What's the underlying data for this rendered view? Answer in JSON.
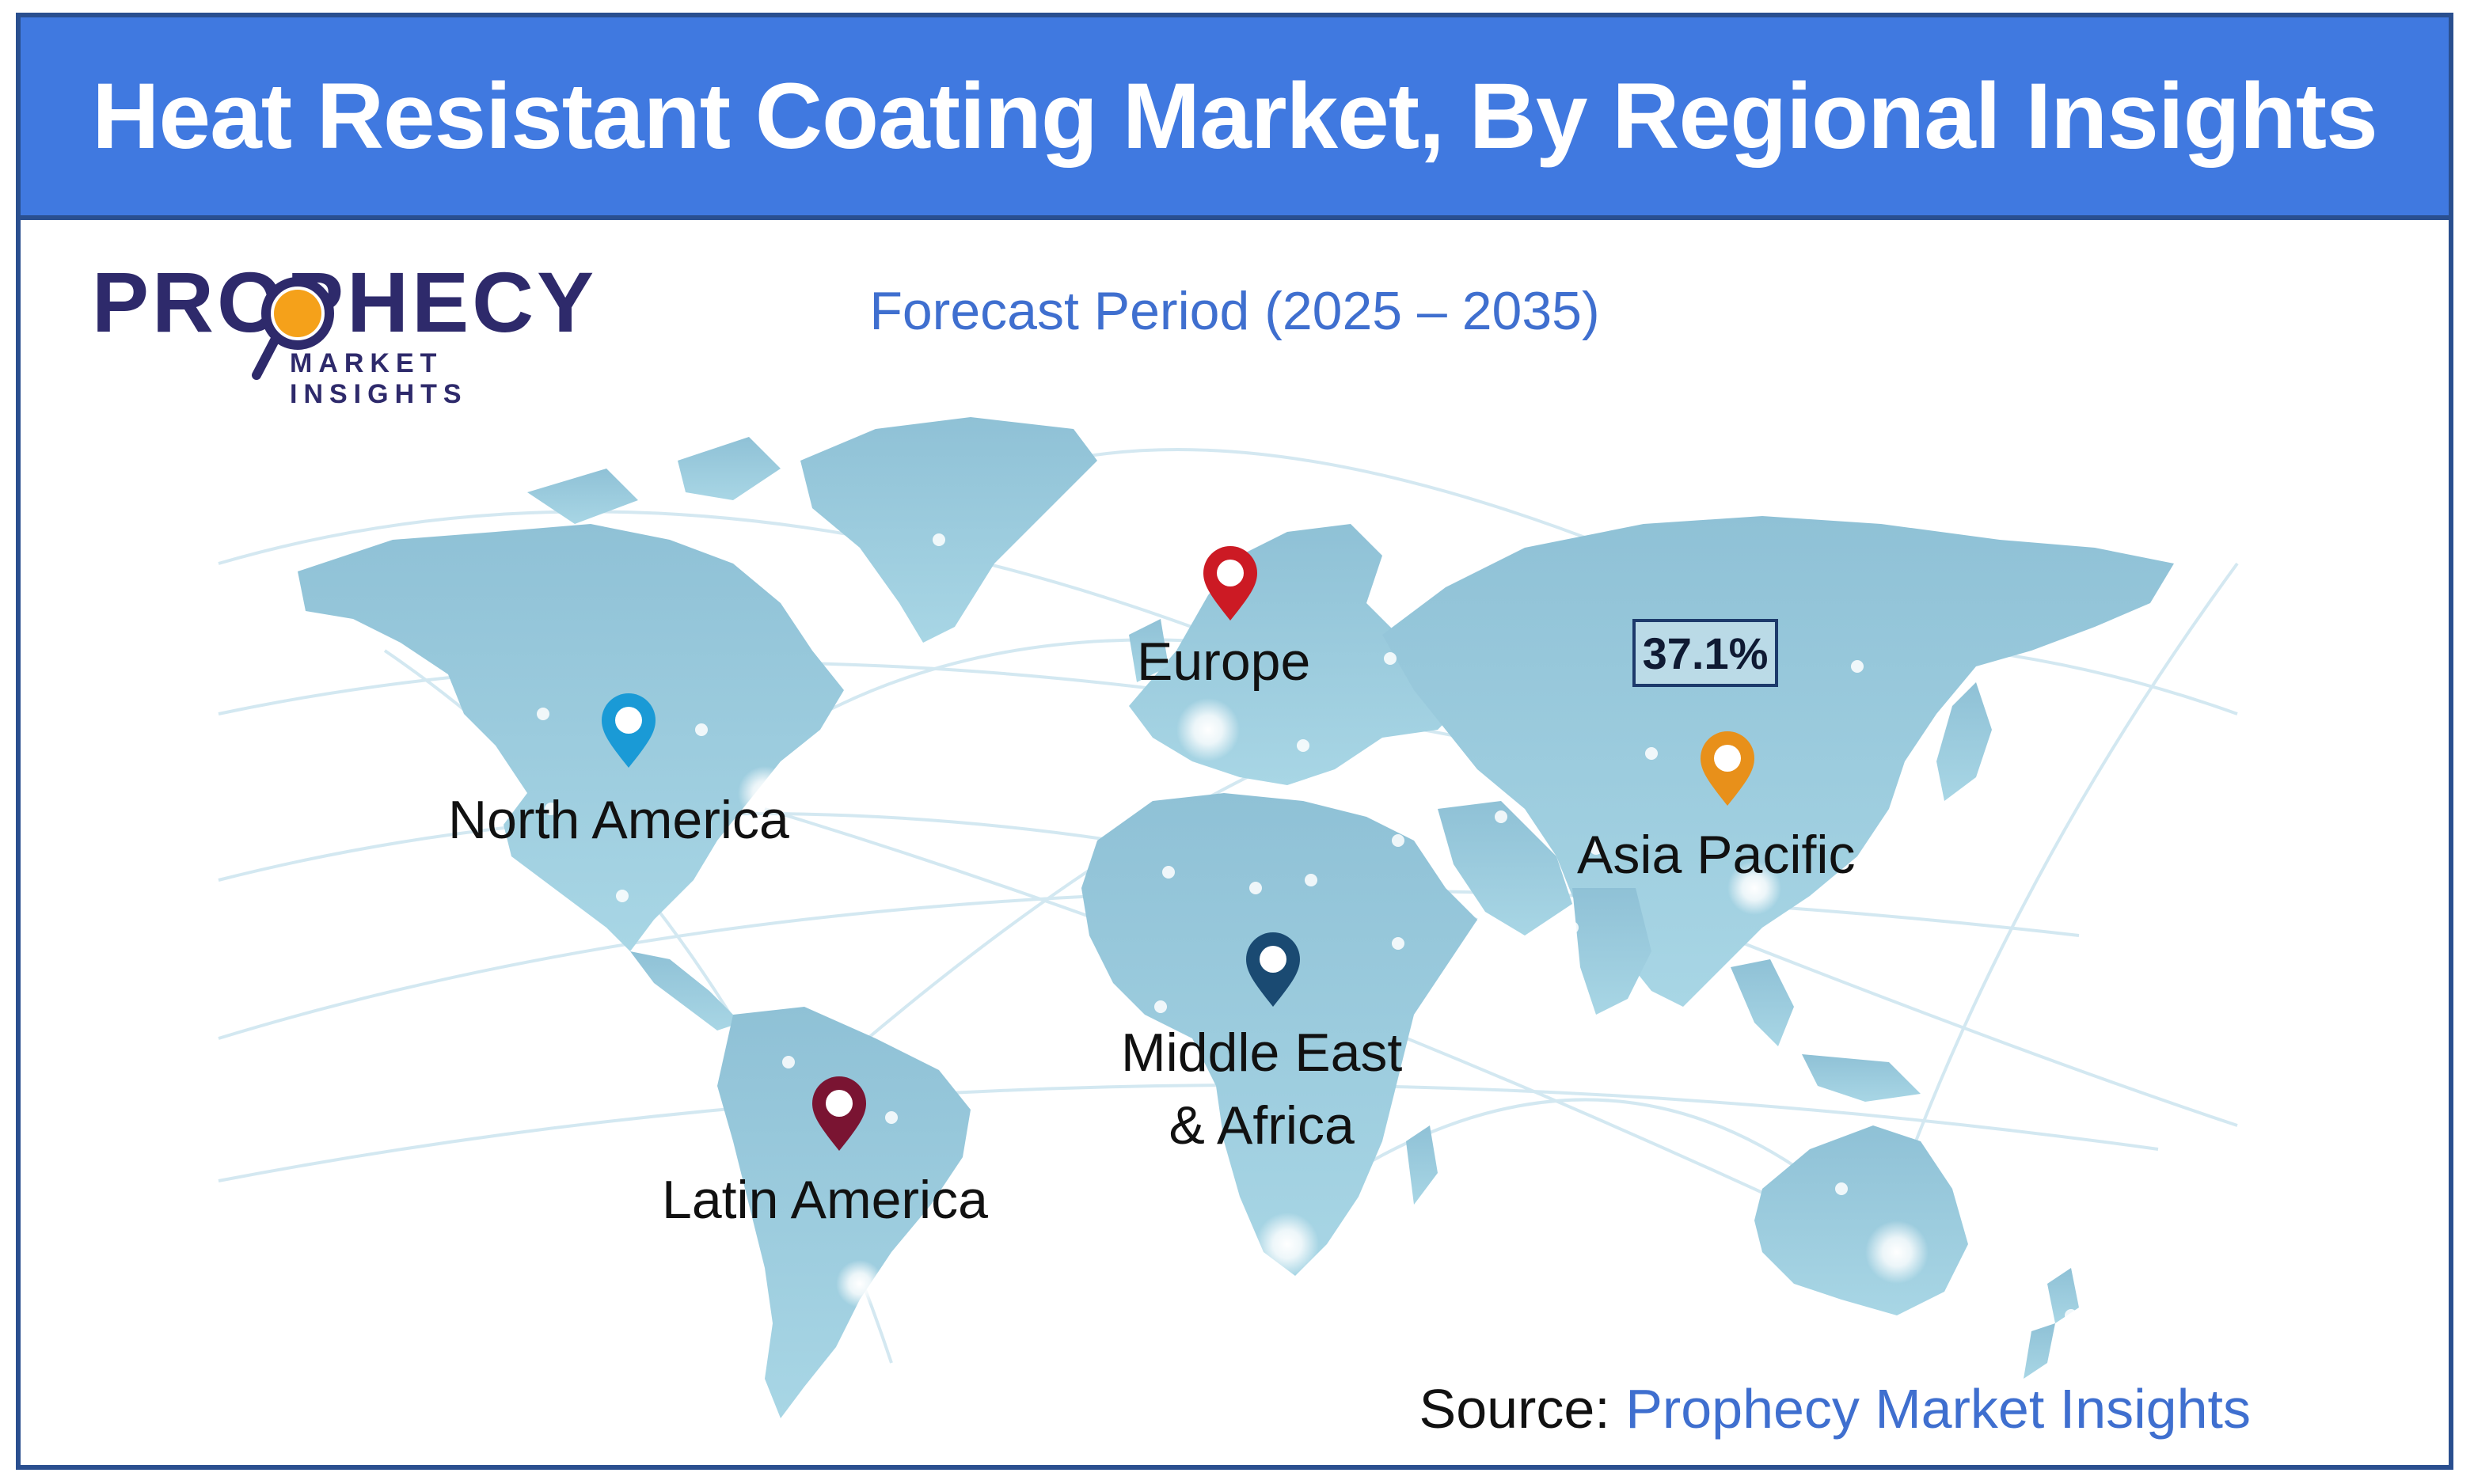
{
  "header": {
    "title": "Heat Resistant Coating Market, By Regional Insights"
  },
  "logo": {
    "name": "PROPHECY",
    "tagline": "MARKET INSIGHTS"
  },
  "subtitle": "Forecast Period (2025 – 2035)",
  "regions": [
    {
      "name": "North America",
      "pin_color": "#1a9ad6"
    },
    {
      "name": "Europe",
      "pin_color": "#cc1a24"
    },
    {
      "name": "Asia Pacific",
      "pin_color": "#e8901a"
    },
    {
      "name": "Latin America",
      "pin_color": "#7a1432"
    },
    {
      "name": "Middle East\n& Africa",
      "pin_color": "#1a4a72"
    }
  ],
  "highlight": {
    "region": "Asia Pacific",
    "value": "37.1%"
  },
  "source": {
    "label": "Source:",
    "name": "Prophecy Market Insights"
  },
  "colors": {
    "header": "#4079e0",
    "land": "#9ccbdd",
    "accent_text": "#3f6fcf",
    "logo": "#2e2a6b",
    "border": "#2a4f8f"
  }
}
